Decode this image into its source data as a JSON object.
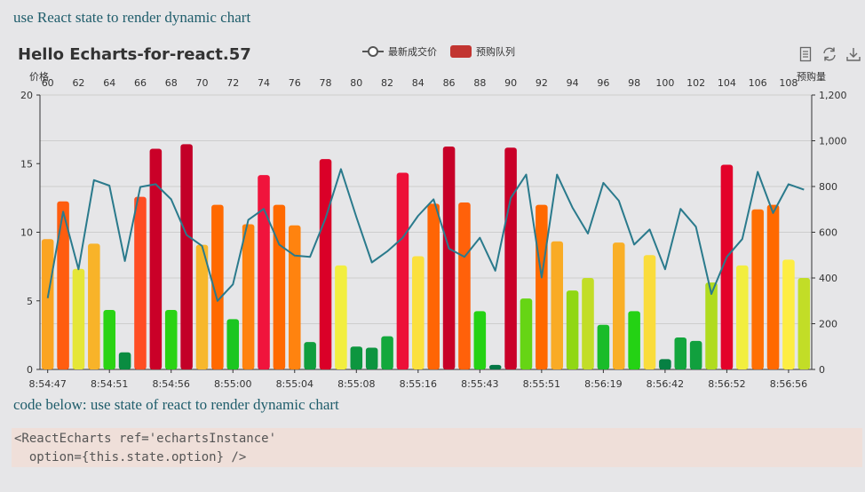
{
  "page": {
    "heading": "use React state to render dynamic chart",
    "subheading": "code below: use state of react to render dynamic chart",
    "code_lines": [
      "<ReactEcharts ref='echartsInstance'",
      "  option={this.state.option} />"
    ],
    "toolbar": [
      "data-view-icon",
      "refresh-icon",
      "save-image-icon"
    ]
  },
  "chart_data": {
    "type": "bar",
    "title": "Hello Echarts-for-react.57",
    "legend": [
      "最新成交价",
      "预购队列"
    ],
    "legend_position": "top-center",
    "grid": true,
    "y_left": {
      "name": "价格",
      "min": 0,
      "max": 20,
      "ticks": [
        0,
        5,
        10,
        15,
        20
      ]
    },
    "y_right": {
      "name": "预购量",
      "min": 0,
      "max": 1200,
      "ticks": [
        "0",
        "200",
        "400",
        "600",
        "800",
        "1,000",
        "1,200"
      ]
    },
    "x_top_labels": [
      "60",
      "62",
      "64",
      "66",
      "68",
      "70",
      "72",
      "74",
      "76",
      "78",
      "80",
      "82",
      "84",
      "86",
      "88",
      "90",
      "92",
      "94",
      "96",
      "98",
      "100",
      "102",
      "104",
      "106",
      "108"
    ],
    "x_bottom_labels": [
      "8:54:47",
      "8:54:51",
      "8:54:56",
      "8:55:00",
      "8:55:04",
      "8:55:08",
      "8:55:16",
      "8:55:43",
      "8:55:51",
      "8:56:19",
      "8:56:42",
      "8:56:52",
      "8:56:56"
    ],
    "series": [
      {
        "name": "预购队列",
        "type": "bar",
        "axis": "right",
        "values": [
          570,
          735,
          440,
          550,
          260,
          75,
          755,
          965,
          260,
          985,
          545,
          720,
          220,
          635,
          850,
          720,
          630,
          120,
          920,
          455,
          100,
          95,
          145,
          860,
          495,
          725,
          975,
          730,
          255,
          20,
          970,
          310,
          720,
          560,
          345,
          400,
          195,
          555,
          255,
          500,
          45,
          140,
          125,
          380,
          895,
          455,
          700,
          720,
          480,
          400
        ]
      },
      {
        "name": "最新成交价",
        "type": "line",
        "axis": "left",
        "values": [
          5.2,
          11.5,
          7.3,
          13.8,
          13.4,
          7.9,
          13.3,
          13.5,
          12.4,
          9.8,
          9.0,
          5.0,
          6.2,
          10.9,
          11.7,
          9.1,
          8.3,
          8.2,
          11.0,
          14.6,
          11.1,
          7.8,
          8.6,
          9.6,
          11.2,
          12.4,
          8.8,
          8.2,
          9.6,
          7.2,
          12.5,
          14.2,
          6.7,
          14.2,
          11.8,
          9.9,
          13.6,
          12.3,
          9.1,
          10.2,
          7.3,
          11.7,
          10.4,
          5.5,
          8.2,
          9.5,
          14.4,
          11.4,
          13.5,
          13.1
        ]
      }
    ]
  }
}
